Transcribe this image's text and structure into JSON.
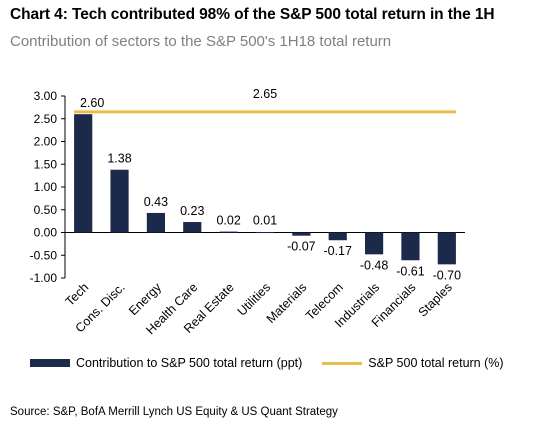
{
  "header": {
    "title": "Chart 4: Tech contributed 98% of the S&P 500 total return in the 1H",
    "subtitle": "Contribution of sectors to the S&P 500's 1H18 total return"
  },
  "footer": {
    "source": "Source: S&P, BofA Merrill Lynch US Equity & US Quant Strategy"
  },
  "colors": {
    "bar": "#1b2a4a",
    "line": "#e6c04f",
    "axis": "#000000"
  },
  "chart_data": {
    "type": "bar",
    "categories": [
      "Tech",
      "Cons. Disc.",
      "Energy",
      "Health Care",
      "Real Estate",
      "Utilities",
      "Materials",
      "Telecom",
      "Industrials",
      "Financials",
      "Staples"
    ],
    "series": [
      {
        "name": "Contribution to S&P 500 total return (ppt)",
        "type": "bar",
        "values": [
          2.6,
          1.38,
          0.43,
          0.23,
          0.02,
          0.01,
          -0.07,
          -0.17,
          -0.48,
          -0.61,
          -0.7
        ],
        "labels": [
          "2.60",
          "1.38",
          "0.43",
          "0.23",
          "0.02",
          "0.01",
          "-0.07",
          "-0.17",
          "-0.48",
          "-0.61",
          "-0.70"
        ]
      },
      {
        "name": "S&P 500 total return (%)",
        "type": "line",
        "value": 2.65,
        "label": "2.65"
      }
    ],
    "ylim": [
      -1.0,
      3.0
    ],
    "yticks": [
      3.0,
      2.5,
      2.0,
      1.5,
      1.0,
      0.5,
      0.0,
      -0.5,
      -1.0
    ],
    "ytick_labels": [
      "3.00",
      "2.50",
      "2.00",
      "1.50",
      "1.00",
      "0.50",
      "0.00",
      "-0.50",
      "-1.00"
    ],
    "xlabel": "",
    "ylabel": "",
    "grid": false,
    "legend": "bottom"
  }
}
